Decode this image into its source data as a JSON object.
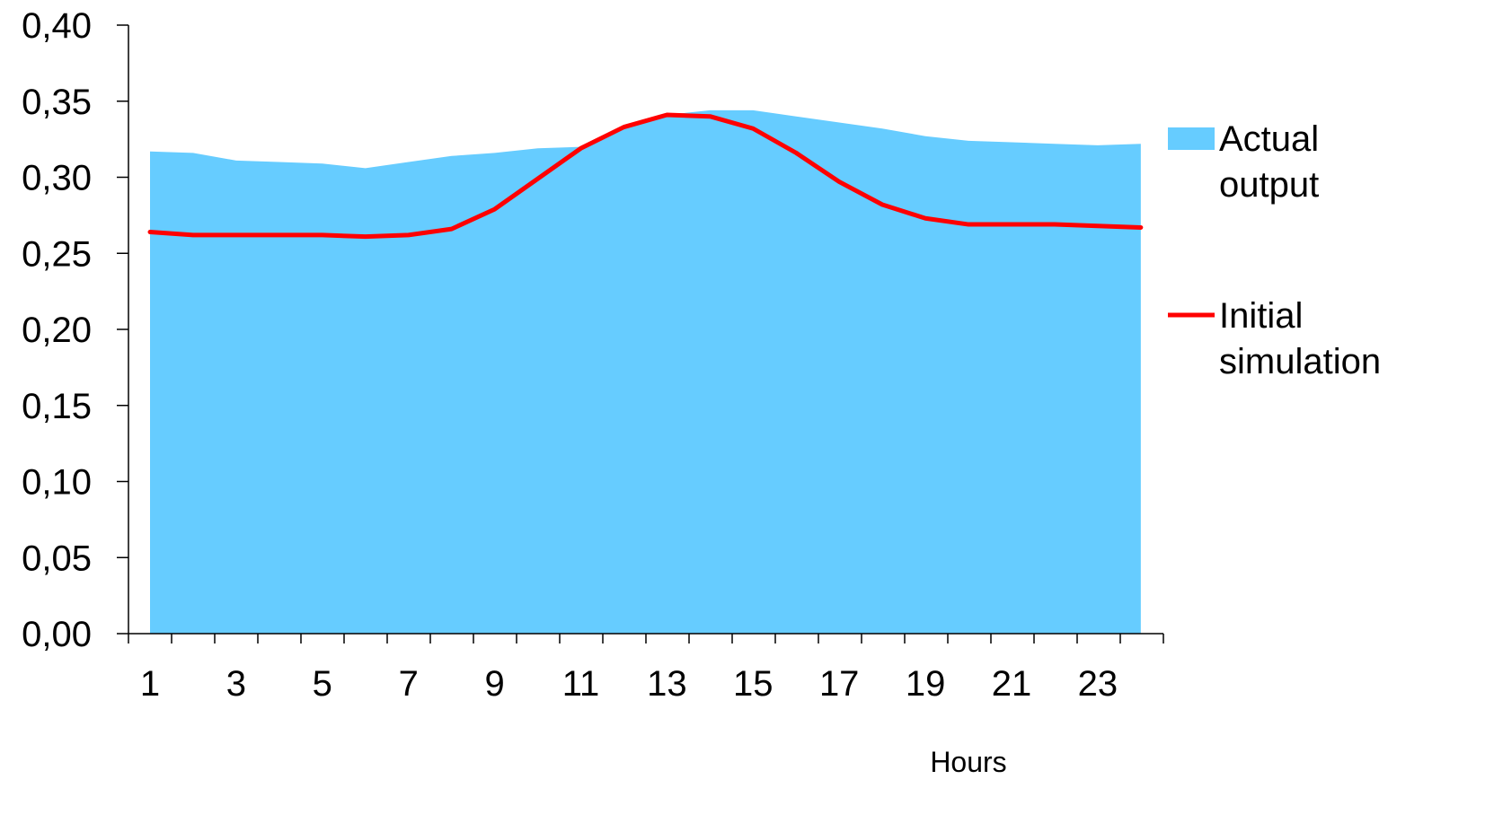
{
  "chart_data": {
    "type": "area",
    "xlabel": "Hours",
    "ylabel": "",
    "ylim": [
      0,
      0.4
    ],
    "y_ticks": [
      "0,00",
      "0,05",
      "0,10",
      "0,15",
      "0,20",
      "0,25",
      "0,30",
      "0,35",
      "0,40"
    ],
    "x": [
      1,
      2,
      3,
      4,
      5,
      6,
      7,
      8,
      9,
      10,
      11,
      12,
      13,
      14,
      15,
      16,
      17,
      18,
      19,
      20,
      21,
      22,
      23,
      24
    ],
    "x_tick_labels": [
      "1",
      "3",
      "5",
      "7",
      "9",
      "11",
      "13",
      "15",
      "17",
      "19",
      "21",
      "23"
    ],
    "legend_position": "right",
    "grid": false,
    "series": [
      {
        "name": "Actual output",
        "kind": "area",
        "color": "#66CCFF",
        "values": [
          0.317,
          0.316,
          0.311,
          0.31,
          0.309,
          0.306,
          0.31,
          0.314,
          0.316,
          0.319,
          0.32,
          0.333,
          0.341,
          0.344,
          0.344,
          0.34,
          0.336,
          0.332,
          0.327,
          0.324,
          0.323,
          0.322,
          0.321,
          0.322
        ]
      },
      {
        "name": "Initial simulation",
        "kind": "line",
        "color": "#FF0000",
        "values": [
          0.264,
          0.262,
          0.262,
          0.262,
          0.262,
          0.261,
          0.262,
          0.266,
          0.279,
          0.299,
          0.319,
          0.333,
          0.341,
          0.34,
          0.332,
          0.316,
          0.297,
          0.282,
          0.273,
          0.269,
          0.269,
          0.269,
          0.268,
          0.267
        ]
      }
    ],
    "legend": {
      "actual_lines": [
        "Actual",
        "output"
      ],
      "simulation_lines": [
        "Initial",
        "simulation"
      ]
    }
  }
}
